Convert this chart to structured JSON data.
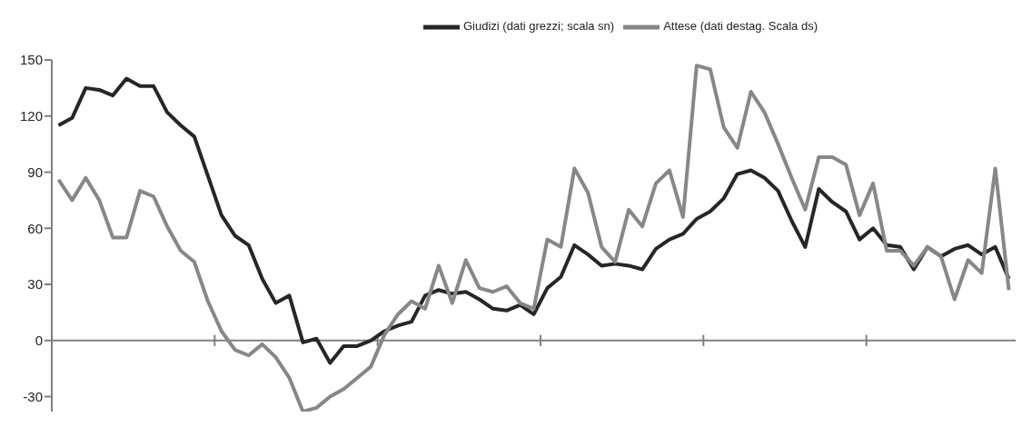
{
  "chart_data": {
    "type": "line",
    "categories": [
      null,
      null,
      null,
      null,
      null,
      null,
      null,
      null,
      null,
      null,
      null,
      null,
      null,
      null,
      null,
      null,
      null,
      null,
      null,
      null,
      null,
      null,
      null,
      null,
      null,
      null,
      null,
      null,
      null,
      null,
      null,
      null,
      null,
      null,
      null,
      null,
      null,
      null,
      null,
      null,
      null,
      null,
      null,
      null,
      null,
      null,
      null,
      null,
      null,
      null,
      null,
      null,
      null,
      null,
      null,
      null,
      null,
      null,
      null,
      null,
      null,
      null,
      null,
      null,
      null,
      null,
      null,
      null,
      null,
      null,
      null
    ],
    "series": [
      {
        "name": "Giudizi (dati grezzi; scala sn)",
        "color": "#262626",
        "values": [
          115,
          119,
          135,
          134,
          131,
          140,
          136,
          136,
          122,
          115,
          109,
          88,
          67,
          56,
          51,
          33,
          20,
          24,
          -1,
          1,
          -12,
          -3,
          -3,
          0,
          5,
          8,
          10,
          24,
          27,
          25,
          26,
          22,
          17,
          16,
          19,
          14,
          28,
          34,
          51,
          46,
          40,
          41,
          40,
          38,
          49,
          54,
          57,
          65,
          69,
          76,
          89,
          91,
          87,
          80,
          64,
          50,
          81,
          74,
          69,
          54,
          60,
          51,
          50,
          38,
          50,
          45,
          49,
          51,
          46,
          50,
          33
        ]
      },
      {
        "name": "Attese (dati destag. Scala ds)",
        "color": "#878787",
        "values": [
          86,
          75,
          87,
          75,
          55,
          55,
          80,
          77,
          61,
          48,
          42,
          21,
          5,
          -5,
          -8,
          -2,
          -9,
          -20,
          -38,
          -36,
          -30,
          -26,
          -20,
          -14,
          3,
          14,
          21,
          17,
          40,
          20,
          43,
          28,
          26,
          29,
          20,
          17,
          54,
          50,
          92,
          79,
          50,
          42,
          70,
          61,
          84,
          91,
          66,
          147,
          145,
          114,
          103,
          133,
          122,
          105,
          87,
          70,
          98,
          98,
          94,
          67,
          84,
          48,
          48,
          40,
          50,
          45,
          22,
          43,
          36,
          92,
          27
        ]
      }
    ],
    "ylim": [
      -38,
      150
    ],
    "yticks": [
      -30,
      0,
      30,
      60,
      90,
      120,
      150
    ],
    "tick_labels": "y",
    "legend": "top",
    "marker": "none",
    "line_style": "solid"
  }
}
